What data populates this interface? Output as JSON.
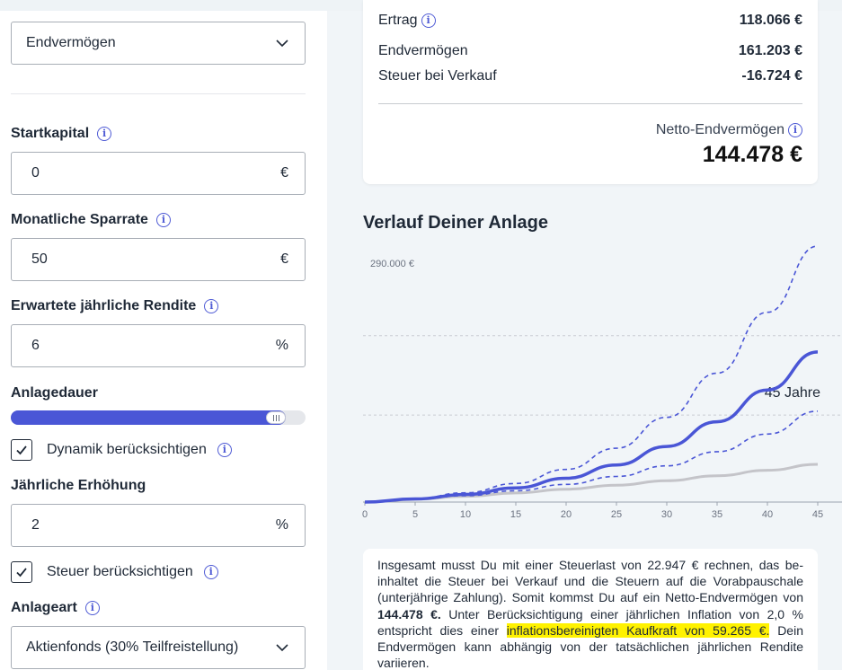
{
  "form": {
    "goal_select": {
      "value": "Endvermögen"
    },
    "startkapital": {
      "label": "Startkapital",
      "value": "0",
      "unit": "€"
    },
    "sparrate": {
      "label": "Monatliche Sparrate",
      "value": "50",
      "unit": "€"
    },
    "rendite": {
      "label": "Erwartete jährliche Rendite",
      "value": "6",
      "unit": "%"
    },
    "anlagedauer": {
      "label": "Anlagedauer",
      "value_text": "45 Jahre",
      "slider_fraction": 0.9
    },
    "dynamik": {
      "label": "Dynamik berücksichtigen",
      "checked": true
    },
    "erhoehung": {
      "label": "Jährliche Erhöhung",
      "value": "2",
      "unit": "%"
    },
    "steuer": {
      "label": "Steuer berücksichtigen",
      "checked": true
    },
    "anlageart": {
      "label": "Anlageart",
      "value": "Aktienfonds (30% Teilfreistellung)"
    }
  },
  "summary": {
    "ertrag": {
      "label": "Ertrag",
      "value": "118.066 €"
    },
    "endvermoegen": {
      "label": "Endvermögen",
      "value": "161.203 €"
    },
    "steuer_verkauf": {
      "label": "Steuer bei Verkauf",
      "value": "-16.724 €"
    },
    "netto": {
      "label": "Netto-Endvermögen",
      "value": "144.478 €"
    }
  },
  "chart_title": "Verlauf Deiner Anlage",
  "chart_data": {
    "type": "line",
    "x_ticks": [
      0,
      5,
      10,
      15,
      20,
      25,
      30,
      35,
      40,
      45
    ],
    "y_label_top": "290.000 €",
    "xlim": [
      0,
      45
    ],
    "ylim": [
      0,
      290000
    ],
    "series": [
      {
        "style": "main",
        "color": "#4a56d6",
        "x": [
          0,
          5,
          10,
          15,
          20,
          25,
          30,
          35,
          40,
          45
        ],
        "y": [
          0,
          3500,
          8600,
          16000,
          27000,
          42000,
          63000,
          91000,
          127000,
          170000
        ]
      },
      {
        "style": "upper",
        "color": "#4a56d6",
        "x": [
          0,
          5,
          10,
          15,
          20,
          25,
          30,
          35,
          40,
          45
        ],
        "y": [
          0,
          4000,
          10500,
          21000,
          37000,
          61000,
          96000,
          146000,
          215000,
          290000
        ]
      },
      {
        "style": "lower",
        "color": "#4a56d6",
        "x": [
          0,
          5,
          10,
          15,
          20,
          25,
          30,
          35,
          40,
          45
        ],
        "y": [
          0,
          3000,
          7200,
          12800,
          20000,
          29000,
          41000,
          57000,
          77000,
          103000
        ]
      },
      {
        "style": "paid",
        "color": "#c4c4c9",
        "x": [
          0,
          5,
          10,
          15,
          20,
          25,
          30,
          35,
          40,
          45
        ],
        "y": [
          0,
          3100,
          6500,
          10300,
          14500,
          19100,
          24200,
          29800,
          36000,
          42800
        ]
      }
    ],
    "grid": true
  },
  "explanation": {
    "p1": "Insgesamt musst Du mit einer Steuerlast von 22.947 € rechnen, das be­inhaltet die Steuer bei Verkauf und die Steuern auf die Vorabpauschale (unterjährige Zahlung). Somit kommst Du auf ein Netto-Endvermögen von ",
    "netto_bold": "144.478 €.",
    "p2": " Unter Berücksichtigung einer jährlichen Inflation von 2,0 % entspricht dies einer ",
    "highlight": "inflationsbereinigten Kaufkraft von 59.265 €.",
    "p3": " Dein Endvermögen kann abhängig von der tatsächlichen jährlichen Ren­dite variieren."
  },
  "icons": {
    "info": "i",
    "check": "check-icon",
    "chevron": "chevron-down-icon"
  },
  "colors": {
    "accent": "#4a56d6",
    "highlight": "#fff200",
    "paid_line": "#c4c4c9"
  }
}
